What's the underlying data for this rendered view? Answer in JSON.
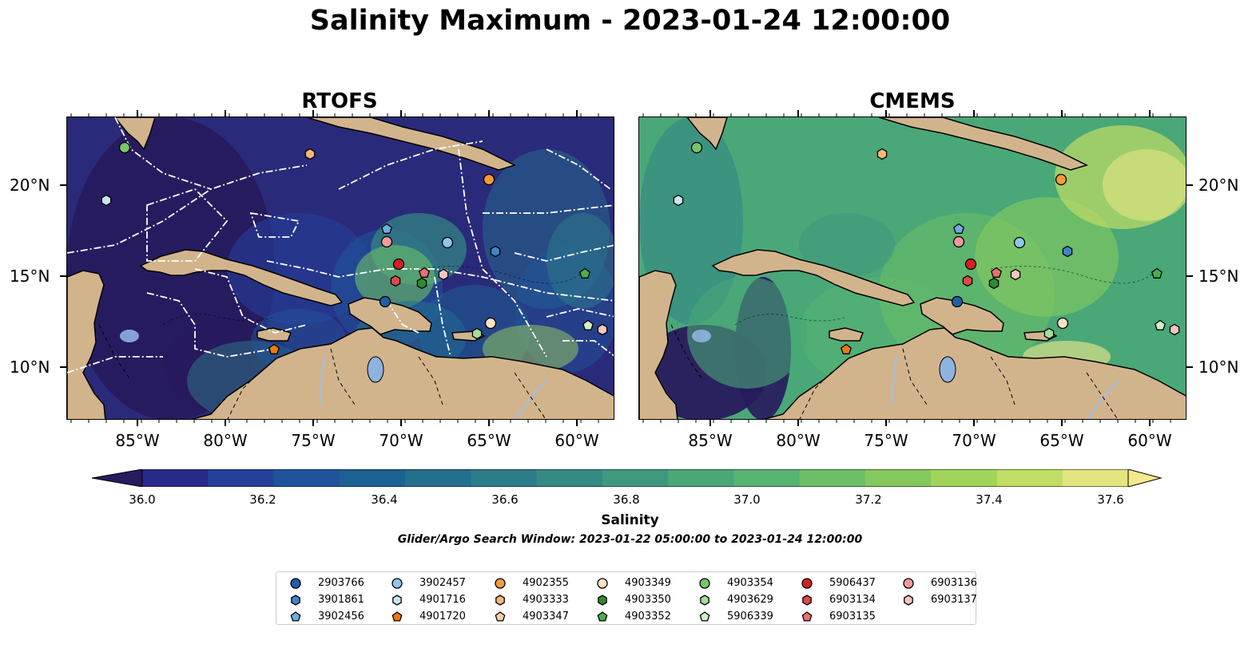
{
  "title": "Salinity Maximum - 2023-01-24 12:00:00",
  "panels": {
    "left_title": "RTOFS",
    "right_title": "CMEMS"
  },
  "longitude_ticks": [
    "85°W",
    "80°W",
    "75°W",
    "70°W",
    "65°W",
    "60°W"
  ],
  "latitude_ticks": [
    "20°N",
    "15°N",
    "10°N"
  ],
  "colorbar": {
    "label": "Salinity",
    "ticks": [
      "36.0",
      "36.2",
      "36.4",
      "36.6",
      "36.8",
      "37.0",
      "37.2",
      "37.4",
      "37.6"
    ],
    "colors": [
      "#271a5d",
      "#2a2a8a",
      "#25409a",
      "#1f539a",
      "#1b6193",
      "#246e8e",
      "#2d7c8a",
      "#358a83",
      "#3f987d",
      "#4aa778",
      "#57b371",
      "#6cbf66",
      "#85c95e",
      "#a0d45b",
      "#c0dd65",
      "#e3e580",
      "#f4ea8c"
    ]
  },
  "search_window": "Glider/Argo Search Window: 2023-01-22 05:00:00 to 2023-01-24 12:00:00",
  "legend": [
    {
      "id": "2903766",
      "color": "#1f5fa8",
      "shape": "circle"
    },
    {
      "id": "3901861",
      "color": "#3f86c8",
      "shape": "hexagon"
    },
    {
      "id": "3902456",
      "color": "#6aaee0",
      "shape": "pentagon"
    },
    {
      "id": "3902457",
      "color": "#8ec7ea",
      "shape": "circle"
    },
    {
      "id": "4901716",
      "color": "#c9e5f4",
      "shape": "hexagon"
    },
    {
      "id": "4901720",
      "color": "#f07a10",
      "shape": "pentagon"
    },
    {
      "id": "4902355",
      "color": "#f59a3c",
      "shape": "circle"
    },
    {
      "id": "4903333",
      "color": "#f8b577",
      "shape": "hexagon"
    },
    {
      "id": "4903347",
      "color": "#fbd0a3",
      "shape": "pentagon"
    },
    {
      "id": "4903349",
      "color": "#fde2c6",
      "shape": "circle"
    },
    {
      "id": "4903350",
      "color": "#2e8b2e",
      "shape": "hexagon"
    },
    {
      "id": "4903352",
      "color": "#4cae4c",
      "shape": "pentagon"
    },
    {
      "id": "4903354",
      "color": "#78c66c",
      "shape": "circle"
    },
    {
      "id": "4903629",
      "color": "#a6dc98",
      "shape": "hexagon"
    },
    {
      "id": "5906339",
      "color": "#ccf0c4",
      "shape": "pentagon"
    },
    {
      "id": "5906437",
      "color": "#d62020",
      "shape": "circle"
    },
    {
      "id": "6903134",
      "color": "#e04848",
      "shape": "hexagon"
    },
    {
      "id": "6903135",
      "color": "#ea7070",
      "shape": "pentagon"
    },
    {
      "id": "6903136",
      "color": "#f29a9a",
      "shape": "circle"
    },
    {
      "id": "6903137",
      "color": "#f8c4c4",
      "shape": "hexagon"
    }
  ],
  "land_color": "#d2b48c",
  "lake_color": "#8fb3e0",
  "river_color": "#9fbfe6",
  "line_color": "#ffffff"
}
